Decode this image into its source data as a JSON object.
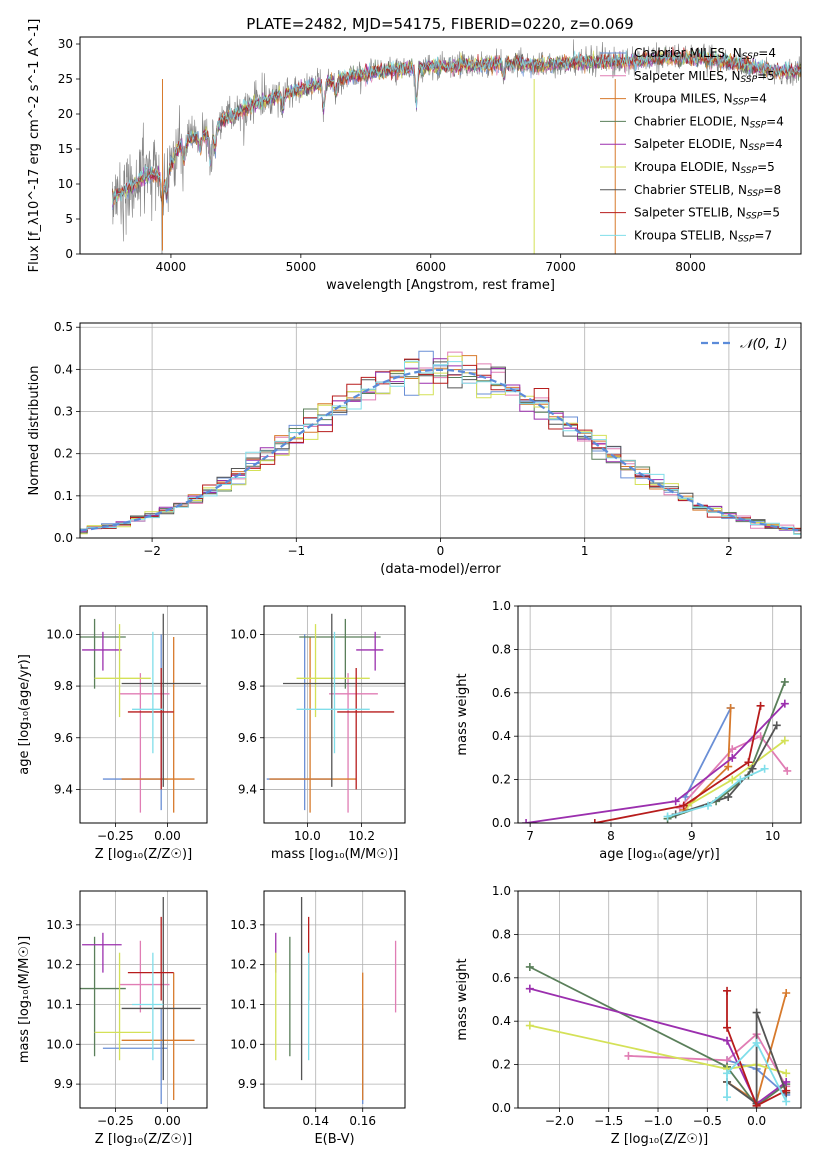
{
  "title": "PLATE=2482, MJD=54175, FIBERID=0220, z=0.069",
  "colors": {
    "chabrier_miles": "#6a8fd6",
    "salpeter_miles": "#e07db4",
    "kroupa_miles": "#d77a2c",
    "chabrier_elodie": "#5a7f5a",
    "salpeter_elodie": "#9b2fae",
    "kroupa_elodie": "#d4e157",
    "chabrier_stelib": "#555555",
    "salpeter_stelib": "#b71c1c",
    "kroupa_stelib": "#80deea",
    "normal": "#5b8bd9"
  },
  "chart_data": [
    {
      "type": "line",
      "id": "spectrum",
      "xlabel": "wavelength [Angstrom, rest frame]",
      "ylabel": "Flux [f_λ10^-17 erg cm^-2 s^-1 A^-1]",
      "xlim": [
        3300,
        8850
      ],
      "ylim": [
        0,
        31
      ],
      "xticks": [
        4000,
        5000,
        6000,
        7000,
        8000
      ],
      "yticks": [
        0,
        5,
        10,
        15,
        20,
        25,
        30
      ],
      "grid": false,
      "legend_position": "top-right",
      "legend": [
        {
          "label": "Chabrier MILES, N",
          "sub": "SSP",
          "suffix": "=4",
          "color": "chabrier_miles"
        },
        {
          "label": "Salpeter MILES, N",
          "sub": "SSP",
          "suffix": "=5",
          "color": "salpeter_miles"
        },
        {
          "label": "Kroupa MILES, N",
          "sub": "SSP",
          "suffix": "=4",
          "color": "kroupa_miles"
        },
        {
          "label": "Chabrier ELODIE, N",
          "sub": "SSP",
          "suffix": "=4",
          "color": "chabrier_elodie"
        },
        {
          "label": "Salpeter ELODIE, N",
          "sub": "SSP",
          "suffix": "=4",
          "color": "salpeter_elodie"
        },
        {
          "label": "Kroupa ELODIE, N",
          "sub": "SSP",
          "suffix": "=5",
          "color": "kroupa_elodie"
        },
        {
          "label": "Chabrier STELIB, N",
          "sub": "SSP",
          "suffix": "=8",
          "color": "chabrier_stelib"
        },
        {
          "label": "Salpeter STELIB, N",
          "sub": "SSP",
          "suffix": "=5",
          "color": "salpeter_stelib"
        },
        {
          "label": "Kroupa STELIB, N",
          "sub": "SSP",
          "suffix": "=7",
          "color": "kroupa_stelib"
        }
      ],
      "continuum": [
        [
          3550,
          8.0
        ],
        [
          3650,
          9.0
        ],
        [
          3750,
          10.5
        ],
        [
          3850,
          11.5
        ],
        [
          3950,
          11.0
        ],
        [
          4050,
          15.0
        ],
        [
          4150,
          16.5
        ],
        [
          4300,
          17.0
        ],
        [
          4400,
          19.0
        ],
        [
          4600,
          21.0
        ],
        [
          4800,
          22.5
        ],
        [
          5000,
          23.5
        ],
        [
          5200,
          24.5
        ],
        [
          5400,
          25.5
        ],
        [
          5700,
          26.3
        ],
        [
          6000,
          26.8
        ],
        [
          6300,
          27.0
        ],
        [
          6560,
          27.2
        ],
        [
          6800,
          27.0
        ],
        [
          7200,
          27.4
        ],
        [
          7500,
          27.5
        ],
        [
          7800,
          28.0
        ],
        [
          8100,
          28.0
        ],
        [
          8400,
          27.0
        ],
        [
          8700,
          26.0
        ],
        [
          8850,
          26.2
        ]
      ],
      "absorption_features": [
        [
          3934,
          4.0
        ],
        [
          3969,
          3.5
        ],
        [
          4101,
          2.5
        ],
        [
          4227,
          2.0
        ],
        [
          4304,
          4.0
        ],
        [
          4340,
          2.5
        ],
        [
          4861,
          2.0
        ],
        [
          5175,
          3.5
        ],
        [
          5270,
          2.0
        ],
        [
          5890,
          5.0
        ],
        [
          6563,
          2.0
        ]
      ],
      "spikes": [
        [
          3935,
          0.5
        ],
        [
          6796,
          0.0
        ],
        [
          7420,
          0.0
        ]
      ]
    },
    {
      "type": "bar",
      "id": "residuals",
      "xlabel": "(data-model)/error",
      "ylabel": "Normed distribution",
      "xlim": [
        -2.5,
        2.5
      ],
      "ylim": [
        0,
        0.51
      ],
      "xticks": [
        -2,
        -1,
        0,
        1,
        2
      ],
      "yticks": [
        0.0,
        0.1,
        0.2,
        0.3,
        0.4,
        0.5
      ],
      "grid": true,
      "bin_width": 0.1,
      "legend_position": "top-right",
      "normal_label": "𝒩(0, 1)"
    },
    {
      "type": "scatter",
      "id": "age_vs_Z",
      "xlabel": "Z [log₁₀(Z/Z☉)]",
      "ylabel": "age  [log₁₀(age/yr)]",
      "xlim": [
        -0.42,
        0.19
      ],
      "ylim": [
        9.27,
        10.11
      ],
      "xticks": [
        -0.25,
        0.0
      ],
      "yticks": [
        9.4,
        9.6,
        9.8,
        10.0
      ],
      "grid": true
    },
    {
      "type": "scatter",
      "id": "age_vs_mass",
      "xlabel": "mass [log₁₀(M/M☉)]",
      "ylabel": "",
      "xlim": [
        9.84,
        10.36
      ],
      "ylim": [
        9.27,
        10.11
      ],
      "xticks": [
        10.0,
        10.2
      ],
      "yticks": [
        9.4,
        9.6,
        9.8,
        10.0
      ],
      "grid": true
    },
    {
      "type": "line",
      "id": "weight_vs_age",
      "xlabel": "age  [log₁₀(age/yr)]",
      "ylabel": "mass weight",
      "xlim": [
        6.85,
        10.35
      ],
      "ylim": [
        0,
        1
      ],
      "xticks": [
        7,
        8,
        9,
        10
      ],
      "yticks": [
        0.0,
        0.2,
        0.4,
        0.6,
        0.8,
        1.0
      ],
      "grid": true,
      "series": [
        {
          "model": "chabrier_miles",
          "points": [
            [
              8.92,
              0.12
            ],
            [
              9.48,
              0.53
            ]
          ]
        },
        {
          "model": "salpeter_miles",
          "points": [
            [
              8.85,
              0.07
            ],
            [
              9.5,
              0.34
            ],
            [
              9.85,
              0.4
            ],
            [
              10.18,
              0.24
            ]
          ]
        },
        {
          "model": "kroupa_miles",
          "points": [
            [
              8.9,
              0.06
            ],
            [
              9.45,
              0.26
            ],
            [
              9.48,
              0.53
            ]
          ]
        },
        {
          "model": "chabrier_elodie",
          "points": [
            [
              8.7,
              0.02
            ],
            [
              9.3,
              0.1
            ],
            [
              9.7,
              0.22
            ],
            [
              10.15,
              0.65
            ]
          ]
        },
        {
          "model": "salpeter_elodie",
          "points": [
            [
              6.95,
              0.0
            ],
            [
              8.8,
              0.1
            ],
            [
              9.5,
              0.3
            ],
            [
              10.15,
              0.55
            ]
          ]
        },
        {
          "model": "kroupa_elodie",
          "points": [
            [
              8.95,
              0.08
            ],
            [
              9.5,
              0.2
            ],
            [
              10.15,
              0.38
            ]
          ]
        },
        {
          "model": "chabrier_stelib",
          "points": [
            [
              8.8,
              0.04
            ],
            [
              9.45,
              0.12
            ],
            [
              9.75,
              0.25
            ],
            [
              10.05,
              0.45
            ]
          ]
        },
        {
          "model": "salpeter_stelib",
          "points": [
            [
              7.8,
              0.0
            ],
            [
              8.9,
              0.08
            ],
            [
              9.7,
              0.28
            ],
            [
              9.85,
              0.54
            ]
          ]
        },
        {
          "model": "kroupa_stelib",
          "points": [
            [
              8.7,
              0.03
            ],
            [
              9.2,
              0.08
            ],
            [
              9.6,
              0.2
            ],
            [
              9.9,
              0.25
            ]
          ]
        }
      ]
    },
    {
      "type": "scatter",
      "id": "mass_vs_Z",
      "xlabel": "Z [log₁₀(Z/Z☉)]",
      "ylabel": "mass [log₁₀(M/M☉)]",
      "xlim": [
        -0.42,
        0.19
      ],
      "ylim": [
        9.84,
        10.385
      ],
      "xticks": [
        -0.25,
        0.0
      ],
      "yticks": [
        9.9,
        10.0,
        10.1,
        10.2,
        10.3
      ],
      "grid": true
    },
    {
      "type": "scatter",
      "id": "mass_vs_ebv",
      "xlabel": "E(B-V)",
      "ylabel": "",
      "xlim": [
        0.118,
        0.178
      ],
      "ylim": [
        9.84,
        10.385
      ],
      "xticks": [
        0.14,
        0.16
      ],
      "yticks": [
        9.9,
        10.0,
        10.1,
        10.2,
        10.3
      ],
      "grid": true
    },
    {
      "type": "line",
      "id": "weight_vs_Z",
      "xlabel": "Z [log₁₀(Z/Z☉)]",
      "ylabel": "mass weight",
      "xlim": [
        -2.42,
        0.45
      ],
      "ylim": [
        0,
        1
      ],
      "xticks": [
        -2.0,
        -1.5,
        -1.0,
        -0.5,
        0.0
      ],
      "yticks": [
        0.0,
        0.2,
        0.4,
        0.6,
        0.8,
        1.0
      ],
      "grid": true,
      "series": [
        {
          "model": "chabrier_miles",
          "points": [
            [
              -0.3,
              0.22
            ],
            [
              0.0,
              0.18
            ],
            [
              0.3,
              0.06
            ]
          ]
        },
        {
          "model": "salpeter_miles",
          "points": [
            [
              -1.3,
              0.24
            ],
            [
              -0.3,
              0.22
            ],
            [
              0.0,
              0.34
            ],
            [
              0.3,
              0.1
            ]
          ]
        },
        {
          "model": "kroupa_miles",
          "points": [
            [
              -0.3,
              0.12
            ],
            [
              0.0,
              0.03
            ],
            [
              0.3,
              0.53
            ]
          ]
        },
        {
          "model": "chabrier_elodie",
          "points": [
            [
              -2.3,
              0.65
            ],
            [
              -0.3,
              0.19
            ],
            [
              0.0,
              0.01
            ],
            [
              0.3,
              0.11
            ]
          ]
        },
        {
          "model": "salpeter_elodie",
          "points": [
            [
              -2.3,
              0.55
            ],
            [
              -0.3,
              0.31
            ],
            [
              0.0,
              0.02
            ],
            [
              0.3,
              0.12
            ]
          ]
        },
        {
          "model": "kroupa_elodie",
          "points": [
            [
              -2.3,
              0.38
            ],
            [
              -0.3,
              0.18
            ],
            [
              0.0,
              0.2
            ],
            [
              0.3,
              0.16
            ]
          ]
        },
        {
          "model": "chabrier_stelib",
          "points": [
            [
              -0.3,
              0.12
            ],
            [
              0.0,
              0.02
            ],
            [
              0.0,
              0.44
            ],
            [
              0.3,
              0.07
            ]
          ]
        },
        {
          "model": "salpeter_stelib",
          "points": [
            [
              -0.3,
              0.54
            ],
            [
              -0.3,
              0.37
            ],
            [
              0.0,
              0.01
            ],
            [
              0.3,
              0.08
            ]
          ]
        },
        {
          "model": "kroupa_stelib",
          "points": [
            [
              -0.3,
              0.05
            ],
            [
              -0.3,
              0.16
            ],
            [
              0.0,
              0.3
            ],
            [
              0.3,
              0.03
            ]
          ]
        }
      ]
    }
  ],
  "ssp_fits": [
    {
      "model": "chabrier_miles",
      "Z": -0.03,
      "Z_err": [
        0.28,
        0.03
      ],
      "age": 9.44,
      "age_err": [
        0.12,
        0.56
      ],
      "mass": 9.99,
      "mass_err": [
        0.14,
        0.1
      ],
      "ebv": 0.16
    },
    {
      "model": "salpeter_miles",
      "Z": -0.13,
      "Z_err": [
        0.1,
        0.14
      ],
      "age": 9.77,
      "age_err": [
        0.46,
        0.08
      ],
      "mass": 10.15,
      "mass_err": [
        0.07,
        0.11
      ],
      "ebv": 0.174
    },
    {
      "model": "kroupa_miles",
      "Z": 0.03,
      "Z_err": [
        0.25,
        0.1
      ],
      "age": 9.44,
      "age_err": [
        0.13,
        0.55
      ],
      "mass": 10.01,
      "mass_err": [
        0.15,
        0.17
      ],
      "ebv": 0.16
    },
    {
      "model": "chabrier_elodie",
      "Z": -0.35,
      "Z_err": [
        0.15,
        0.15
      ],
      "age": 9.99,
      "age_err": [
        0.2,
        0.07
      ],
      "mass": 10.14,
      "mass_err": [
        0.17,
        0.13
      ],
      "ebv": 0.129
    },
    {
      "model": "salpeter_elodie",
      "Z": -0.31,
      "Z_err": [
        0.1,
        0.09
      ],
      "age": 9.94,
      "age_err": [
        0.08,
        0.07
      ],
      "mass": 10.25,
      "mass_err": [
        0.07,
        0.03
      ],
      "ebv": 0.123
    },
    {
      "model": "kroupa_elodie",
      "Z": -0.23,
      "Z_err": [
        0.12,
        0.15
      ],
      "age": 9.83,
      "age_err": [
        0.15,
        0.21
      ],
      "mass": 10.03,
      "mass_err": [
        0.07,
        0.2
      ],
      "ebv": 0.123
    },
    {
      "model": "chabrier_stelib",
      "Z": -0.02,
      "Z_err": [
        0.2,
        0.18
      ],
      "age": 9.81,
      "age_err": [
        0.4,
        0.27
      ],
      "mass": 10.09,
      "mass_err": [
        0.18,
        0.28
      ],
      "ebv": 0.134
    },
    {
      "model": "salpeter_stelib",
      "Z": -0.03,
      "Z_err": [
        0.16,
        0.06
      ],
      "age": 9.7,
      "age_err": [
        0.3,
        0.17
      ],
      "mass": 10.18,
      "mass_err": [
        0.07,
        0.14
      ],
      "ebv": 0.137
    },
    {
      "model": "kroupa_stelib",
      "Z": -0.07,
      "Z_err": [
        0.1,
        0.05
      ],
      "age": 9.71,
      "age_err": [
        0.17,
        0.3
      ],
      "mass": 10.1,
      "mass_err": [
        0.14,
        0.13
      ],
      "ebv": 0.137
    }
  ]
}
